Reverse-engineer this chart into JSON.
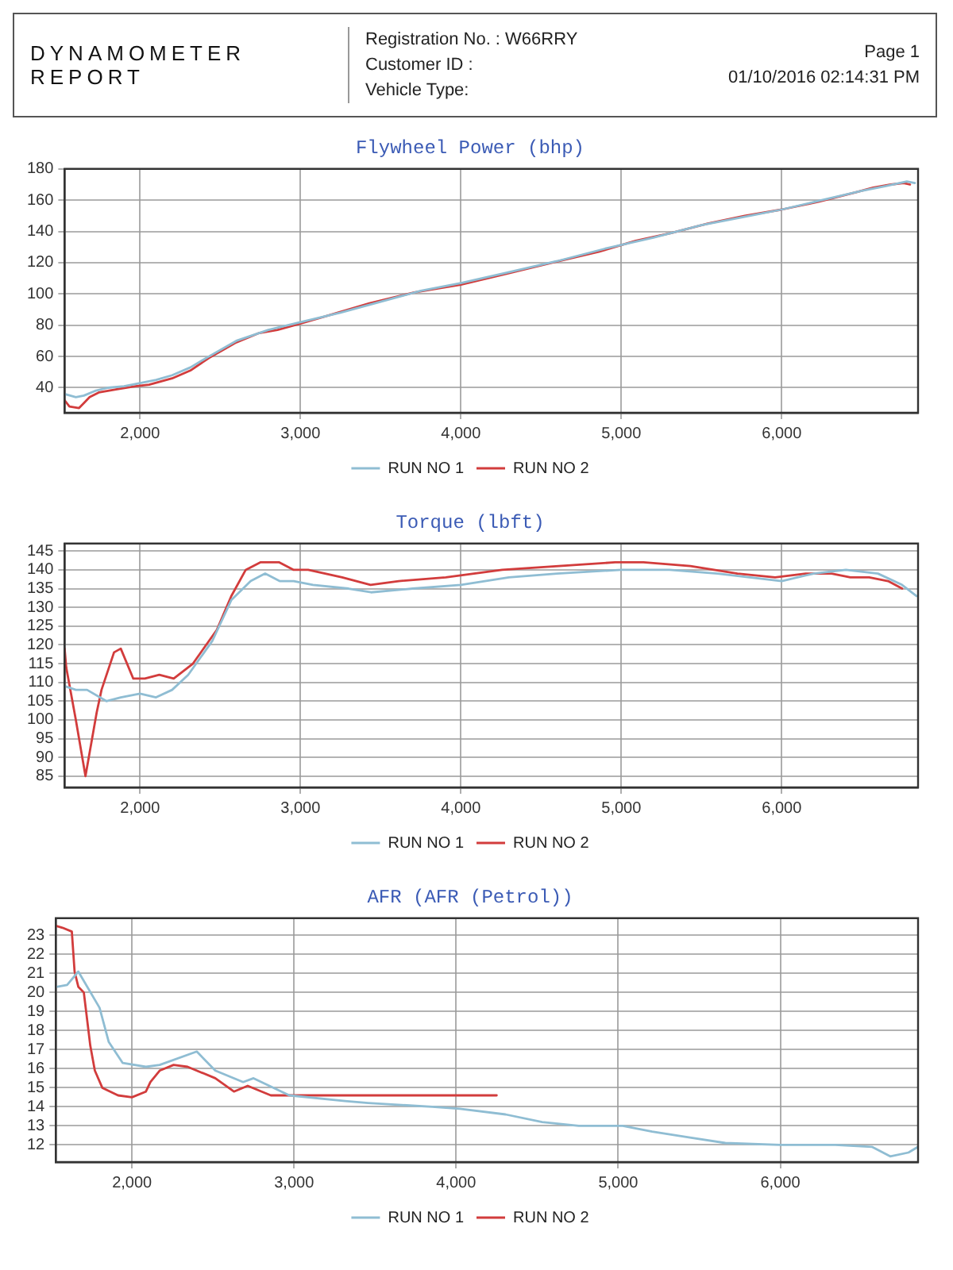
{
  "chart_data": [
    {
      "type": "other",
      "title": "DYNAMOMETER REPORT",
      "annotations": [
        "Registration No. :  W66RRY",
        "Customer ID :",
        "Vehicle Type:",
        "Page 1",
        "01/10/2016 02:14:31 PM"
      ]
    },
    {
      "type": "line",
      "title": "Flywheel Power (bhp)",
      "xlim": [
        1530,
        6850
      ],
      "ylim": [
        24,
        180
      ],
      "xticks": [
        {
          "value": 2000,
          "label": "2,000"
        },
        {
          "value": 3000,
          "label": "3,000"
        },
        {
          "value": 4000,
          "label": "4,000"
        },
        {
          "value": 5000,
          "label": "5,000"
        },
        {
          "value": 6000,
          "label": "6,000"
        }
      ],
      "yticks": [
        40,
        60,
        80,
        100,
        120,
        140,
        160,
        180
      ],
      "grid": true,
      "legend": "bottom",
      "marker": "none",
      "line_style": "solid",
      "series": [
        {
          "name": "RUN NO 1",
          "color": "#8fbdd3",
          "x": [
            1530,
            1600,
            1650,
            1720,
            1800,
            1900,
            2000,
            2100,
            2200,
            2314,
            2429,
            2600,
            2800,
            3000,
            3250,
            3500,
            3750,
            4000,
            4300,
            4600,
            4900,
            5200,
            5500,
            5800,
            6000,
            6250,
            6500,
            6650,
            6780,
            6830
          ],
          "values": [
            36,
            34,
            35,
            38,
            40,
            41,
            43,
            45,
            48,
            53,
            60,
            70,
            77,
            82,
            88,
            95,
            102,
            107,
            114,
            121,
            129,
            136,
            144,
            150,
            154,
            160,
            166,
            169,
            172,
            171
          ]
        },
        {
          "name": "RUN NO 2",
          "color": "#d23c3c",
          "x": [
            1530,
            1560,
            1620,
            1686,
            1743,
            1857,
            1971,
            2057,
            2200,
            2314,
            2429,
            2514,
            2600,
            2743,
            2857,
            3000,
            3200,
            3430,
            3710,
            4000,
            4290,
            4570,
            4860,
            5090,
            5310,
            5540,
            5770,
            6000,
            6230,
            6460,
            6570,
            6680,
            6760,
            6800
          ],
          "values": [
            32,
            28,
            27,
            34,
            37,
            39,
            41,
            42,
            46,
            51,
            59,
            64,
            69,
            75,
            77,
            81,
            87,
            94,
            101,
            106,
            113,
            120,
            127,
            134,
            139,
            145,
            150,
            154,
            159,
            165,
            168,
            170,
            171,
            170
          ]
        }
      ]
    },
    {
      "type": "line",
      "title": "Torque (lbft)",
      "xlim": [
        1530,
        6850
      ],
      "ylim": [
        82,
        147
      ],
      "xticks": [
        {
          "value": 2000,
          "label": "2,000"
        },
        {
          "value": 3000,
          "label": "3,000"
        },
        {
          "value": 4000,
          "label": "4,000"
        },
        {
          "value": 5000,
          "label": "5,000"
        },
        {
          "value": 6000,
          "label": "6,000"
        }
      ],
      "yticks": [
        85,
        90,
        95,
        100,
        105,
        110,
        115,
        120,
        125,
        130,
        135,
        140,
        145
      ],
      "grid": true,
      "legend": "bottom",
      "marker": "none",
      "line_style": "solid",
      "series": [
        {
          "name": "RUN NO 1",
          "color": "#8fbdd3",
          "x": [
            1530,
            1600,
            1670,
            1790,
            1880,
            2000,
            2100,
            2200,
            2300,
            2450,
            2570,
            2690,
            2780,
            2870,
            2958,
            3078,
            3300,
            3440,
            3700,
            4000,
            4300,
            4600,
            5000,
            5300,
            5600,
            5800,
            6000,
            6200,
            6400,
            6600,
            6750,
            6840
          ],
          "values": [
            109,
            108,
            108,
            105,
            106,
            107,
            106,
            108,
            112,
            121,
            132,
            137,
            139,
            137,
            137,
            136,
            135,
            134,
            135,
            136,
            138,
            139,
            140,
            140,
            139,
            138,
            137,
            139,
            140,
            139,
            136,
            133
          ]
        },
        {
          "name": "RUN NO 2",
          "color": "#d23c3c",
          "x": [
            1530,
            1540,
            1600,
            1660,
            1730,
            1760,
            1838,
            1880,
            1958,
            2030,
            2120,
            2210,
            2330,
            2479,
            2569,
            2659,
            2750,
            2868,
            2958,
            3048,
            3260,
            3437,
            3613,
            3906,
            4258,
            4610,
            4962,
            5138,
            5431,
            5724,
            5959,
            6150,
            6311,
            6428,
            6545,
            6663,
            6751
          ],
          "values": [
            119,
            114,
            100,
            85,
            102,
            108,
            118,
            119,
            111,
            111,
            112,
            111,
            115,
            124,
            133,
            140,
            142,
            142,
            140,
            140,
            138,
            136,
            137,
            138,
            140,
            141,
            142,
            142,
            141,
            139,
            138,
            139,
            139,
            138,
            138,
            137,
            135
          ]
        }
      ]
    },
    {
      "type": "line",
      "title": "AFR (AFR (Petrol))",
      "xlim": [
        1530,
        6850
      ],
      "ylim": [
        11.1,
        23.9
      ],
      "xticks": [
        {
          "value": 2000,
          "label": "2,000"
        },
        {
          "value": 3000,
          "label": "3,000"
        },
        {
          "value": 4000,
          "label": "4,000"
        },
        {
          "value": 5000,
          "label": "5,000"
        },
        {
          "value": 6000,
          "label": "6,000"
        }
      ],
      "yticks": [
        12,
        13,
        14,
        15,
        16,
        17,
        18,
        19,
        20,
        21,
        22,
        23
      ],
      "grid": true,
      "legend": "bottom",
      "marker": "none",
      "line_style": "solid",
      "series": [
        {
          "name": "RUN NO 1",
          "color": "#8fbdd3",
          "x": [
            1540,
            1600,
            1669,
            1800,
            1857,
            1943,
            2086,
            2171,
            2400,
            2514,
            2686,
            2750,
            2971,
            3314,
            3458,
            3853,
            4023,
            4305,
            4531,
            4757,
            5028,
            5209,
            5435,
            5661,
            6000,
            6339,
            6565,
            6678,
            6791,
            6850
          ],
          "values": [
            20.3,
            20.4,
            21.1,
            19.2,
            17.4,
            16.3,
            16.1,
            16.2,
            16.9,
            15.9,
            15.3,
            15.5,
            14.6,
            14.3,
            14.2,
            14.0,
            13.9,
            13.6,
            13.2,
            13.0,
            13.0,
            12.7,
            12.4,
            12.1,
            12.0,
            12.0,
            11.9,
            11.4,
            11.6,
            11.9
          ]
        },
        {
          "name": "RUN NO 2",
          "color": "#d23c3c",
          "x": [
            1530,
            1571,
            1629,
            1646,
            1669,
            1703,
            1743,
            1771,
            1817,
            1914,
            2000,
            2086,
            2114,
            2171,
            2257,
            2343,
            2514,
            2629,
            2714,
            2857,
            3000,
            3314,
            4250
          ],
          "values": [
            23.5,
            23.4,
            23.2,
            21.1,
            20.3,
            20.0,
            17.2,
            15.9,
            15.0,
            14.6,
            14.5,
            14.8,
            15.3,
            15.9,
            16.2,
            16.1,
            15.5,
            14.8,
            15.1,
            14.6,
            14.6,
            14.6,
            14.6
          ]
        }
      ]
    }
  ]
}
